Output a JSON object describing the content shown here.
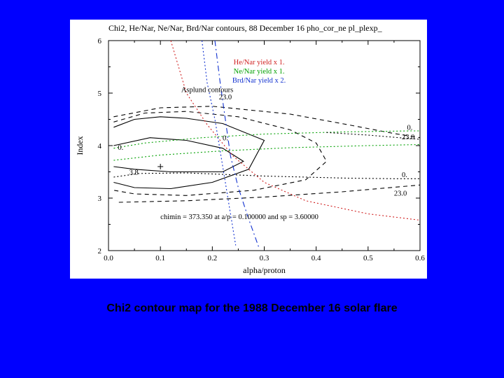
{
  "caption": "Chi2 contour map for the 1988 December 16 solar flare",
  "chart": {
    "type": "contour",
    "title": "Chi2, He/Nar, Ne/Nar, Brd/Nar contours, 88 December 16 pho_cor_ne pl_plexp_",
    "xlabel": "alpha/proton",
    "ylabel": "Index",
    "xlim": [
      0.0,
      0.6
    ],
    "ylim": [
      2,
      6
    ],
    "xticks": [
      0.0,
      0.1,
      0.2,
      0.3,
      0.4,
      0.5,
      0.6
    ],
    "yticks": [
      2,
      3,
      4,
      5,
      6
    ],
    "xtick_labels": [
      "0.0",
      "0.1",
      "0.2",
      "0.3",
      "0.4",
      "0.5",
      "0.6"
    ],
    "ytick_labels": [
      "2",
      "3",
      "4",
      "5",
      "6"
    ],
    "background_color": "#ffffff",
    "axis_color": "#000000",
    "page_background": "#0000ff",
    "title_fontsize": 12,
    "label_fontsize": 12,
    "tick_fontsize": 11,
    "legend": {
      "position": "upper-center",
      "items": [
        {
          "text": "He/Nar yield x 1.",
          "color": "#d02020"
        },
        {
          "text": "Ne/Nar yield x 1.",
          "color": "#00a000"
        },
        {
          "text": "Brd/Nar yield x 2.",
          "color": "#1030d0"
        }
      ]
    },
    "internal_labels": {
      "asplund": "Asplund contours",
      "chimin": "chimin = 373.350 at a/p = 0.100000 and sp = 3.60000"
    },
    "contour_labels": {
      "v0a": "0.",
      "v0b": "0.",
      "v0c": "0.",
      "v0d": "0.",
      "v23a": "23.0",
      "v23b": "23.0",
      "v23c": "23.0",
      "v38": "3.8"
    },
    "colors": {
      "black": "#000000",
      "red": "#d02020",
      "green": "#00a000",
      "blue": "#1030d0"
    },
    "linestyles": {
      "solid": "none",
      "dashed": "6,5",
      "dotted": "2,3",
      "dashdot": "8,4,2,4"
    },
    "series": [
      {
        "name": "chi2-solid-upper",
        "color": "#000000",
        "dash": "none",
        "points": [
          [
            0.01,
            4.35
          ],
          [
            0.05,
            4.5
          ],
          [
            0.1,
            4.55
          ],
          [
            0.15,
            4.52
          ],
          [
            0.22,
            4.42
          ],
          [
            0.3,
            4.1
          ],
          [
            0.27,
            3.55
          ],
          [
            0.2,
            3.3
          ],
          [
            0.12,
            3.18
          ],
          [
            0.05,
            3.2
          ],
          [
            0.01,
            3.3
          ]
        ]
      },
      {
        "name": "chi2-solid-mid",
        "color": "#000000",
        "dash": "none",
        "points": [
          [
            0.01,
            4.0
          ],
          [
            0.08,
            4.15
          ],
          [
            0.15,
            4.1
          ],
          [
            0.22,
            3.95
          ],
          [
            0.26,
            3.7
          ],
          [
            0.22,
            3.5
          ],
          [
            0.12,
            3.5
          ],
          [
            0.05,
            3.55
          ],
          [
            0.01,
            3.6
          ]
        ]
      },
      {
        "name": "chi2-dashed-outer",
        "color": "#000000",
        "dash": "6,5",
        "points": [
          [
            0.01,
            4.45
          ],
          [
            0.07,
            4.62
          ],
          [
            0.15,
            4.65
          ],
          [
            0.25,
            4.55
          ],
          [
            0.35,
            4.3
          ],
          [
            0.4,
            4.05
          ],
          [
            0.42,
            3.7
          ],
          [
            0.38,
            3.35
          ],
          [
            0.28,
            3.15
          ],
          [
            0.15,
            3.05
          ],
          [
            0.05,
            3.08
          ],
          [
            0.01,
            3.15
          ]
        ]
      },
      {
        "name": "upper-dashed-right",
        "color": "#000000",
        "dash": "6,5",
        "points": [
          [
            0.01,
            4.55
          ],
          [
            0.1,
            4.72
          ],
          [
            0.2,
            4.75
          ],
          [
            0.35,
            4.6
          ],
          [
            0.46,
            4.4
          ],
          [
            0.55,
            4.23
          ],
          [
            0.6,
            4.15
          ]
        ]
      },
      {
        "name": "lower-dashed-right",
        "color": "#000000",
        "dash": "6,5",
        "points": [
          [
            0.02,
            2.92
          ],
          [
            0.15,
            2.95
          ],
          [
            0.3,
            3.02
          ],
          [
            0.45,
            3.12
          ],
          [
            0.6,
            3.25
          ]
        ]
      },
      {
        "name": "dotted-sep-lower",
        "color": "#000000",
        "dash": "2,3",
        "points": [
          [
            0.01,
            3.4
          ],
          [
            0.06,
            3.47
          ],
          [
            0.15,
            3.48
          ],
          [
            0.3,
            3.42
          ],
          [
            0.46,
            3.38
          ],
          [
            0.55,
            3.37
          ],
          [
            0.6,
            3.37
          ]
        ]
      },
      {
        "name": "he-red-dotted",
        "color": "#d02020",
        "dash": "2,3",
        "points": [
          [
            0.12,
            6.0
          ],
          [
            0.15,
            5.0
          ],
          [
            0.19,
            4.4
          ],
          [
            0.24,
            3.8
          ],
          [
            0.3,
            3.3
          ],
          [
            0.38,
            2.95
          ],
          [
            0.5,
            2.7
          ],
          [
            0.6,
            2.58
          ]
        ]
      },
      {
        "name": "ne-green-dotted-upper",
        "color": "#00a000",
        "dash": "2,3",
        "points": [
          [
            0.01,
            3.95
          ],
          [
            0.07,
            4.05
          ],
          [
            0.18,
            4.15
          ],
          [
            0.3,
            4.22
          ],
          [
            0.45,
            4.26
          ],
          [
            0.58,
            4.28
          ],
          [
            0.6,
            4.28
          ]
        ]
      },
      {
        "name": "ne-green-dotted-lower",
        "color": "#00a000",
        "dash": "2,3",
        "points": [
          [
            0.01,
            3.72
          ],
          [
            0.1,
            3.82
          ],
          [
            0.22,
            3.9
          ],
          [
            0.35,
            3.96
          ],
          [
            0.5,
            4.0
          ],
          [
            0.6,
            4.02
          ]
        ]
      },
      {
        "name": "brd-blue-dotted",
        "color": "#1030d0",
        "dash": "2,3",
        "points": [
          [
            0.18,
            6.0
          ],
          [
            0.19,
            5.2
          ],
          [
            0.205,
            4.5
          ],
          [
            0.215,
            3.9
          ],
          [
            0.225,
            3.3
          ],
          [
            0.235,
            2.7
          ],
          [
            0.245,
            2.1
          ]
        ]
      },
      {
        "name": "brd-blue-dashdot",
        "color": "#1030d0",
        "dash": "8,4,2,4",
        "points": [
          [
            0.205,
            6.0
          ],
          [
            0.215,
            5.2
          ],
          [
            0.225,
            4.5
          ],
          [
            0.235,
            3.8
          ],
          [
            0.25,
            3.2
          ],
          [
            0.27,
            2.6
          ],
          [
            0.29,
            2.05
          ]
        ]
      },
      {
        "name": "right-23-dotted",
        "color": "#000000",
        "dash": "2,3",
        "points": [
          [
            0.42,
            4.25
          ],
          [
            0.5,
            4.2
          ],
          [
            0.56,
            4.15
          ],
          [
            0.6,
            4.12
          ]
        ]
      }
    ]
  }
}
